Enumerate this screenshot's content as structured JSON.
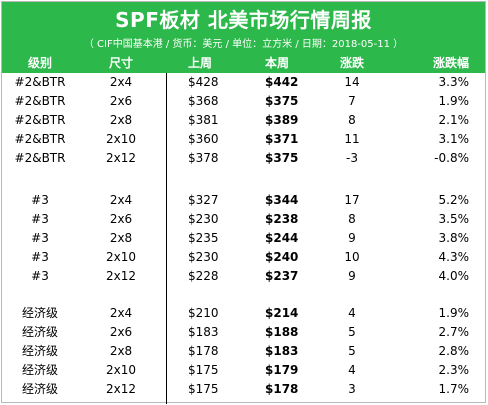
{
  "header": {
    "title": "SPF板材 北美市场行情周报",
    "subtitle": "（ CIF中国基本港 / 货币：美元 / 单位：立方米 / 日期：2018-05-11 ）"
  },
  "columns": {
    "grade": "级别",
    "size": "尺寸",
    "last_week": "上周",
    "this_week": "本周",
    "change": "涨跌",
    "change_pct": "涨跌幅"
  },
  "groups": [
    {
      "rows": [
        {
          "grade": "#2&BTR",
          "size": "2x4",
          "last": "$428",
          "this": "$442",
          "chg": "14",
          "pct": "3.3%"
        },
        {
          "grade": "#2&BTR",
          "size": "2x6",
          "last": "$368",
          "this": "$375",
          "chg": "7",
          "pct": "1.9%"
        },
        {
          "grade": "#2&BTR",
          "size": "2x8",
          "last": "$381",
          "this": "$389",
          "chg": "8",
          "pct": "2.1%"
        },
        {
          "grade": "#2&BTR",
          "size": "2x10",
          "last": "$360",
          "this": "$371",
          "chg": "11",
          "pct": "3.1%"
        },
        {
          "grade": "#2&BTR",
          "size": "2x12",
          "last": "$378",
          "this": "$375",
          "chg": "-3",
          "pct": "-0.8%"
        }
      ]
    },
    {
      "rows": [
        {
          "grade": "#3",
          "size": "2x4",
          "last": "$327",
          "this": "$344",
          "chg": "17",
          "pct": "5.2%"
        },
        {
          "grade": "#3",
          "size": "2x6",
          "last": "$230",
          "this": "$238",
          "chg": "8",
          "pct": "3.5%"
        },
        {
          "grade": "#3",
          "size": "2x8",
          "last": "$235",
          "this": "$244",
          "chg": "9",
          "pct": "3.8%"
        },
        {
          "grade": "#3",
          "size": "2x10",
          "last": "$230",
          "this": "$240",
          "chg": "10",
          "pct": "4.3%"
        },
        {
          "grade": "#3",
          "size": "2x12",
          "last": "$228",
          "this": "$237",
          "chg": "9",
          "pct": "4.0%"
        }
      ]
    },
    {
      "rows": [
        {
          "grade": "经济级",
          "size": "2x4",
          "last": "$210",
          "this": "$214",
          "chg": "4",
          "pct": "1.9%"
        },
        {
          "grade": "经济级",
          "size": "2x6",
          "last": "$183",
          "this": "$188",
          "chg": "5",
          "pct": "2.7%"
        },
        {
          "grade": "经济级",
          "size": "2x8",
          "last": "$178",
          "this": "$183",
          "chg": "5",
          "pct": "2.8%"
        },
        {
          "grade": "经济级",
          "size": "2x10",
          "last": "$175",
          "this": "$179",
          "chg": "4",
          "pct": "2.3%"
        },
        {
          "grade": "经济级",
          "size": "2x12",
          "last": "$175",
          "this": "$178",
          "chg": "3",
          "pct": "1.7%"
        }
      ]
    }
  ]
}
